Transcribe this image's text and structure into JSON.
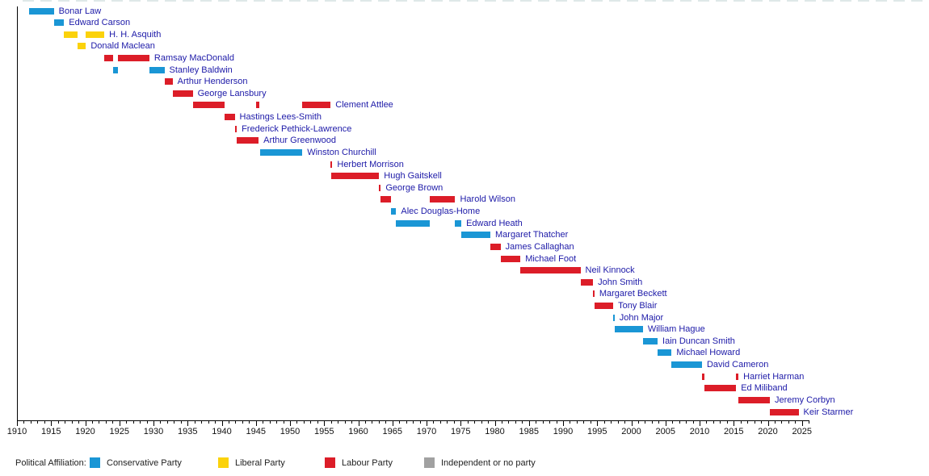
{
  "colors": {
    "conservative": "#1a96d5",
    "liberal": "#fbd20b",
    "labour": "#dc1d28",
    "independent": "#a1a1a1",
    "leader_text": "#1d1aa8",
    "axis": "#000000",
    "tick_text": "#111111",
    "legend_text": "#222222"
  },
  "legend": {
    "title": "Political Affiliation:",
    "items": [
      {
        "label": "Conservative Party",
        "party": "conservative"
      },
      {
        "label": "Liberal Party",
        "party": "liberal"
      },
      {
        "label": "Labour Party",
        "party": "labour"
      },
      {
        "label": "Independent or no party",
        "party": "independent"
      }
    ]
  },
  "chart_data": {
    "type": "bar",
    "orientation": "horizontal-timeline",
    "xlabel": "",
    "ylabel": "",
    "axis_range": [
      1910,
      2026
    ],
    "tick_labels": [
      1910,
      1915,
      1920,
      1925,
      1930,
      1935,
      1940,
      1945,
      1950,
      1955,
      1960,
      1965,
      1970,
      1975,
      1980,
      1985,
      1990,
      1995,
      2000,
      2005,
      2010,
      2015,
      2020,
      2025
    ],
    "minor_tick_step": 1,
    "major_tick_step": 5,
    "legend_position": "bottom",
    "grid": false,
    "leaders": [
      {
        "name": "Bonar Law",
        "party": "conservative",
        "segments": [
          [
            1911.8,
            1915.4
          ]
        ]
      },
      {
        "name": "Edward Carson",
        "party": "conservative",
        "segments": [
          [
            1915.4,
            1916.9
          ]
        ]
      },
      {
        "name": "H. H. Asquith",
        "party": "liberal",
        "segments": [
          [
            1916.9,
            1918.9
          ],
          [
            1920.1,
            1922.8
          ]
        ]
      },
      {
        "name": "Donald Maclean",
        "party": "liberal",
        "segments": [
          [
            1918.9,
            1920.1
          ]
        ]
      },
      {
        "name": "Ramsay MacDonald",
        "party": "labour",
        "segments": [
          [
            1922.8,
            1924.05
          ],
          [
            1924.85,
            1929.4
          ]
        ]
      },
      {
        "name": "Stanley Baldwin",
        "party": "conservative",
        "segments": [
          [
            1924.05,
            1924.85
          ],
          [
            1929.4,
            1931.6
          ]
        ]
      },
      {
        "name": "Arthur Henderson",
        "party": "labour",
        "segments": [
          [
            1931.6,
            1932.8
          ]
        ]
      },
      {
        "name": "George Lansbury",
        "party": "labour",
        "segments": [
          [
            1932.8,
            1935.75
          ]
        ]
      },
      {
        "name": "Clement Attlee",
        "party": "labour",
        "segments": [
          [
            1935.75,
            1940.4
          ],
          [
            1945.05,
            1945.45
          ],
          [
            1951.8,
            1955.95
          ]
        ]
      },
      {
        "name": "Hastings Lees-Smith",
        "party": "labour",
        "segments": [
          [
            1940.4,
            1941.9
          ]
        ]
      },
      {
        "name": "Frederick Pethick-Lawrence",
        "party": "labour",
        "segments": [
          [
            1941.9,
            1942.2
          ]
        ]
      },
      {
        "name": "Arthur Greenwood",
        "party": "labour",
        "segments": [
          [
            1942.2,
            1945.4
          ]
        ]
      },
      {
        "name": "Winston Churchill",
        "party": "conservative",
        "segments": [
          [
            1945.6,
            1951.8
          ]
        ]
      },
      {
        "name": "Herbert Morrison",
        "party": "labour",
        "segments": [
          [
            1955.95,
            1956.2
          ]
        ]
      },
      {
        "name": "Hugh Gaitskell",
        "party": "labour",
        "segments": [
          [
            1956.0,
            1963.05
          ]
        ]
      },
      {
        "name": "George Brown",
        "party": "labour",
        "segments": [
          [
            1963.05,
            1963.3
          ]
        ]
      },
      {
        "name": "Harold Wilson",
        "party": "labour",
        "segments": [
          [
            1963.3,
            1964.8
          ],
          [
            1970.45,
            1974.2
          ]
        ]
      },
      {
        "name": "Alec Douglas-Home",
        "party": "conservative",
        "segments": [
          [
            1964.8,
            1965.55
          ]
        ]
      },
      {
        "name": "Edward Heath",
        "party": "conservative",
        "segments": [
          [
            1965.55,
            1970.45
          ],
          [
            1974.2,
            1975.1
          ]
        ]
      },
      {
        "name": "Margaret Thatcher",
        "party": "conservative",
        "segments": [
          [
            1975.1,
            1979.35
          ]
        ]
      },
      {
        "name": "James Callaghan",
        "party": "labour",
        "segments": [
          [
            1979.35,
            1980.85
          ]
        ]
      },
      {
        "name": "Michael Foot",
        "party": "labour",
        "segments": [
          [
            1980.85,
            1983.75
          ]
        ]
      },
      {
        "name": "Neil Kinnock",
        "party": "labour",
        "segments": [
          [
            1983.75,
            1992.55
          ]
        ]
      },
      {
        "name": "John Smith",
        "party": "labour",
        "segments": [
          [
            1992.55,
            1994.4
          ]
        ]
      },
      {
        "name": "Margaret Beckett",
        "party": "labour",
        "segments": [
          [
            1994.4,
            1994.6
          ]
        ]
      },
      {
        "name": "Tony Blair",
        "party": "labour",
        "segments": [
          [
            1994.6,
            1997.35
          ]
        ]
      },
      {
        "name": "John Major",
        "party": "conservative",
        "segments": [
          [
            1997.35,
            1997.55
          ]
        ]
      },
      {
        "name": "William Hague",
        "party": "conservative",
        "segments": [
          [
            1997.55,
            2001.7
          ]
        ]
      },
      {
        "name": "Iain Duncan Smith",
        "party": "conservative",
        "segments": [
          [
            2001.7,
            2003.85
          ]
        ]
      },
      {
        "name": "Michael Howard",
        "party": "conservative",
        "segments": [
          [
            2003.85,
            2005.9
          ]
        ]
      },
      {
        "name": "David Cameron",
        "party": "conservative",
        "segments": [
          [
            2005.9,
            2010.35
          ]
        ]
      },
      {
        "name": "Harriet Harman",
        "party": "labour",
        "segments": [
          [
            2010.35,
            2010.7
          ],
          [
            2015.35,
            2015.7
          ]
        ]
      },
      {
        "name": "Ed Miliband",
        "party": "labour",
        "segments": [
          [
            2010.7,
            2015.35
          ]
        ]
      },
      {
        "name": "Jeremy Corbyn",
        "party": "labour",
        "segments": [
          [
            2015.7,
            2020.3
          ]
        ]
      },
      {
        "name": "Keir Starmer",
        "party": "labour",
        "segments": [
          [
            2020.3,
            2024.5
          ]
        ]
      }
    ]
  }
}
